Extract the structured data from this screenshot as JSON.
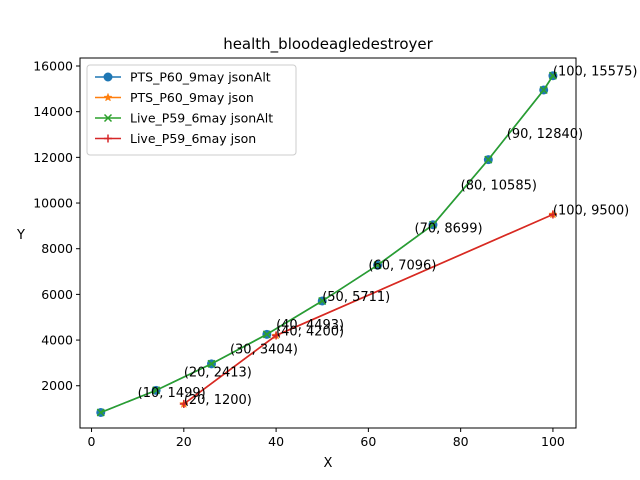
{
  "chart_data": {
    "type": "line",
    "title": "health_bloodeagledestroyer",
    "xlabel": "X",
    "ylabel": "Y",
    "xlim": [
      -2.5,
      105
    ],
    "ylim": [
      150,
      16350
    ],
    "xticks": [
      0,
      20,
      40,
      60,
      80,
      100
    ],
    "yticks": [
      2000,
      4000,
      6000,
      8000,
      10000,
      12000,
      14000,
      16000
    ],
    "legend_position": "upper-left",
    "grid": false,
    "series": [
      {
        "name": "PTS_P60_9may jsonAlt",
        "color": "#1f77b4",
        "marker": "circle",
        "x": [
          2,
          14,
          26,
          38,
          50,
          62,
          74,
          86,
          98,
          100
        ],
        "y": [
          830,
          1800,
          2960,
          4250,
          5711,
          7280,
          9050,
          11900,
          14950,
          15575
        ]
      },
      {
        "name": "PTS_P60_9may json",
        "color": "#ff7f0e",
        "marker": "star",
        "x": [
          20,
          40,
          100
        ],
        "y": [
          1200,
          4200,
          9500
        ]
      },
      {
        "name": "Live_P59_6may jsonAlt",
        "color": "#2ca02c",
        "marker": "x",
        "x": [
          2,
          14,
          26,
          38,
          50,
          62,
          74,
          86,
          98,
          100
        ],
        "y": [
          830,
          1800,
          2960,
          4250,
          5711,
          7280,
          9050,
          11900,
          14950,
          15575
        ]
      },
      {
        "name": "Live_P59_6may json",
        "color": "#d62728",
        "marker": "plus",
        "x": [
          20,
          40,
          100
        ],
        "y": [
          1200,
          4200,
          9500
        ]
      }
    ],
    "annotations": [
      {
        "text": "(10, 1499)",
        "x": 10,
        "y": 1499
      },
      {
        "text": "(20, 2413)",
        "x": 20,
        "y": 2413
      },
      {
        "text": "(30, 3404)",
        "x": 30,
        "y": 3404
      },
      {
        "text": "(40, 4493)",
        "x": 40,
        "y": 4493
      },
      {
        "text": "(50, 5711)",
        "x": 50,
        "y": 5711
      },
      {
        "text": "(60, 7096)",
        "x": 60,
        "y": 7096
      },
      {
        "text": "(70, 8699)",
        "x": 70,
        "y": 8699
      },
      {
        "text": "(80, 10585)",
        "x": 80,
        "y": 10585
      },
      {
        "text": "(90, 12840)",
        "x": 90,
        "y": 12840
      },
      {
        "text": "(100, 15575)",
        "x": 100,
        "y": 15575
      },
      {
        "text": "(20, 1200)",
        "x": 20,
        "y": 1200
      },
      {
        "text": "(40, 4200)",
        "x": 40,
        "y": 4200
      },
      {
        "text": "(100, 9500)",
        "x": 100,
        "y": 9500
      }
    ]
  }
}
